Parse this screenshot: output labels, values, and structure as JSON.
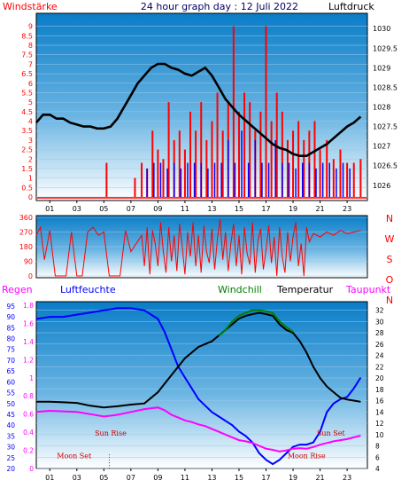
{
  "header": {
    "left_label": "Windstärke",
    "title": "24 hour graph day : 12 Juli 2022",
    "right_label": "Luftdruck"
  },
  "colors": {
    "background_top": "#0a7dc7",
    "background_bottom": "#ffffff",
    "wind": "#ff0000",
    "gust": "#0000ff",
    "pressure": "#000000",
    "direction": "#ff0000",
    "humidity": "#0000ff",
    "temperature": "#000000",
    "windchill": "#008000",
    "dewpoint": "#ff00ff",
    "rain_label": "#ff00ff",
    "humidity_label": "#0000ff",
    "windchill_label": "#008000",
    "temperature_label": "#000000",
    "dewpoint_label": "#ff00ff",
    "event_text": "#cc0000"
  },
  "chart_data": [
    {
      "type": "line",
      "panel": "wind_pressure",
      "xlim": [
        0,
        24.5
      ],
      "x_ticks": [
        "01",
        "03",
        "05",
        "07",
        "09",
        "11",
        "13",
        "15",
        "17",
        "19",
        "21",
        "23"
      ],
      "left_axis": {
        "label": "Windstärke",
        "ylim": [
          0,
          9.5
        ],
        "ticks": [
          "0",
          "0.5",
          "1",
          "1.5",
          "2",
          "2.5",
          "3",
          "3.5",
          "4",
          "4.5",
          "5",
          "5.5",
          "6",
          "6.5",
          "7",
          "7.5",
          "8",
          "8.5",
          "9"
        ]
      },
      "right_axis": {
        "label": "Luftdruck",
        "ylim": [
          1025.7,
          1030.3
        ],
        "ticks": [
          "1026",
          "1026.5",
          "1027",
          "1027.5",
          "1028",
          "1028.5",
          "1029",
          "1029.5",
          "1030"
        ]
      },
      "series": [
        {
          "name": "Windstärke",
          "style": "bars",
          "x": [
            5.2,
            7.3,
            7.8,
            8.2,
            8.6,
            9.0,
            9.4,
            9.8,
            10.2,
            10.6,
            11.0,
            11.4,
            11.8,
            12.2,
            12.6,
            13.0,
            13.4,
            13.8,
            14.2,
            14.6,
            15.0,
            15.4,
            15.8,
            16.2,
            16.6,
            17.0,
            17.4,
            17.8,
            18.2,
            18.6,
            19.0,
            19.4,
            19.8,
            20.2,
            20.6,
            21.0,
            21.5,
            22.0,
            22.5,
            23.0,
            23.5,
            24.0
          ],
          "values": [
            1.8,
            1.0,
            1.8,
            1.5,
            3.5,
            2.5,
            2.0,
            5.0,
            3.0,
            3.5,
            2.5,
            4.5,
            3.5,
            5.0,
            3.0,
            4.0,
            5.5,
            3.5,
            5.0,
            9.0,
            4.5,
            5.5,
            5.0,
            3.5,
            4.5,
            9.0,
            4.0,
            5.5,
            4.5,
            3.0,
            3.5,
            4.0,
            3.0,
            3.5,
            4.0,
            2.5,
            3.0,
            2.0,
            2.5,
            1.8,
            1.8,
            2.0
          ]
        },
        {
          "name": "Böen",
          "style": "bars",
          "x": [
            8.2,
            8.7,
            9.2,
            9.7,
            10.2,
            10.7,
            11.2,
            11.7,
            12.2,
            12.7,
            13.2,
            13.7,
            14.2,
            14.7,
            15.2,
            15.7,
            16.2,
            16.7,
            17.2,
            17.7,
            18.2,
            18.7,
            19.2,
            19.7,
            20.2,
            20.7,
            21.2,
            21.7,
            22.2,
            22.7,
            23.2
          ],
          "values": [
            1.5,
            1.8,
            1.8,
            1.5,
            1.8,
            1.5,
            1.8,
            1.8,
            1.8,
            1.5,
            1.8,
            1.8,
            3.0,
            1.8,
            3.5,
            1.8,
            3.0,
            1.8,
            1.8,
            3.0,
            1.8,
            1.8,
            1.5,
            1.8,
            1.8,
            1.5,
            1.8,
            1.8,
            1.5,
            1.8,
            1.5
          ]
        },
        {
          "name": "Luftdruck",
          "style": "line",
          "axis": "right",
          "x": [
            0,
            0.5,
            1,
            1.5,
            2,
            2.5,
            3,
            3.5,
            4,
            4.5,
            5,
            5.5,
            6,
            6.5,
            7,
            7.5,
            8,
            8.5,
            9,
            9.5,
            10,
            10.5,
            11,
            11.5,
            12,
            12.5,
            13,
            13.5,
            14,
            14.5,
            15,
            15.5,
            16,
            16.5,
            17,
            17.5,
            18,
            18.5,
            19,
            19.5,
            20,
            20.5,
            21,
            21.5,
            22,
            22.5,
            23,
            23.5,
            24
          ],
          "values": [
            1027.6,
            1027.8,
            1027.8,
            1027.7,
            1027.7,
            1027.6,
            1027.55,
            1027.5,
            1027.5,
            1027.45,
            1027.45,
            1027.5,
            1027.7,
            1028.0,
            1028.3,
            1028.6,
            1028.8,
            1029.0,
            1029.1,
            1029.1,
            1029.0,
            1028.95,
            1028.85,
            1028.8,
            1028.9,
            1029.0,
            1028.8,
            1028.5,
            1028.2,
            1028.0,
            1027.8,
            1027.65,
            1027.5,
            1027.35,
            1027.2,
            1027.05,
            1026.95,
            1026.9,
            1026.8,
            1026.75,
            1026.75,
            1026.85,
            1026.95,
            1027.05,
            1027.2,
            1027.35,
            1027.5,
            1027.6,
            1027.75
          ]
        }
      ]
    },
    {
      "type": "line",
      "panel": "wind_direction",
      "xlim": [
        0,
        24.5
      ],
      "ylim": [
        0,
        360
      ],
      "left_ticks": [
        "360",
        "270",
        "180",
        "90",
        "0"
      ],
      "right_ticks": [
        "N",
        "W",
        "S",
        "O",
        "N"
      ],
      "series": [
        {
          "name": "Windrichtung",
          "x": [
            0,
            0.3,
            0.6,
            1.0,
            1.4,
            1.8,
            2.2,
            2.6,
            3.0,
            3.4,
            3.8,
            4.2,
            4.6,
            5.0,
            5.4,
            5.8,
            6.2,
            6.6,
            7.0,
            7.4,
            7.8,
            8.0,
            8.2,
            8.4,
            8.6,
            8.8,
            9.0,
            9.2,
            9.4,
            9.6,
            9.8,
            10.0,
            10.2,
            10.4,
            10.6,
            10.8,
            11.0,
            11.2,
            11.4,
            11.6,
            11.8,
            12.0,
            12.2,
            12.4,
            12.6,
            12.8,
            13.0,
            13.2,
            13.4,
            13.6,
            13.8,
            14.0,
            14.2,
            14.4,
            14.6,
            14.8,
            15.0,
            15.2,
            15.4,
            15.6,
            15.8,
            16.0,
            16.2,
            16.4,
            16.6,
            16.8,
            17.0,
            17.2,
            17.4,
            17.6,
            17.8,
            18.0,
            18.2,
            18.4,
            18.6,
            18.8,
            19.0,
            19.2,
            19.4,
            19.6,
            19.8,
            20.0,
            20.2,
            20.5,
            21.0,
            21.5,
            22.0,
            22.5,
            23.0,
            23.5,
            24.0
          ],
          "values": [
            250,
            300,
            100,
            280,
            0,
            0,
            0,
            270,
            0,
            0,
            270,
            300,
            250,
            270,
            0,
            0,
            0,
            280,
            150,
            200,
            250,
            60,
            300,
            10,
            280,
            200,
            60,
            330,
            150,
            20,
            300,
            90,
            250,
            30,
            320,
            180,
            10,
            270,
            120,
            330,
            60,
            250,
            20,
            310,
            150,
            80,
            290,
            40,
            230,
            350,
            100,
            270,
            30,
            200,
            320,
            60,
            250,
            10,
            300,
            140,
            70,
            330,
            20,
            220,
            290,
            40,
            160,
            310,
            80,
            240,
            0,
            300,
            120,
            20,
            270,
            90,
            240,
            330,
            60,
            200,
            0,
            300,
            210,
            260,
            240,
            270,
            250,
            280,
            260,
            270,
            280
          ]
        }
      ]
    },
    {
      "type": "line",
      "panel": "humidity_temperature",
      "xlim": [
        0,
        24.5
      ],
      "axes": {
        "rain": {
          "label": "Regen",
          "ticks": [
            "0",
            "0.2",
            "0.4",
            "0.6",
            "0.8",
            "1",
            "1.2",
            "1.4",
            "1.6",
            "1.8"
          ]
        },
        "humidity": {
          "label": "Luftfeuchte",
          "ylim": [
            20,
            97
          ],
          "ticks": [
            "20",
            "25",
            "30",
            "35",
            "40",
            "45",
            "50",
            "55",
            "60",
            "65",
            "70",
            "75",
            "80",
            "85",
            "90",
            "95"
          ]
        },
        "temperature": {
          "label": "Temperatur",
          "ylim": [
            4,
            33.5
          ],
          "ticks": [
            "4",
            "6",
            "8",
            "10",
            "12",
            "14",
            "16",
            "18",
            "20",
            "22",
            "24",
            "26",
            "28",
            "30",
            "32"
          ]
        }
      },
      "legend": [
        "Windchill",
        "Temperatur",
        "Taupunkt"
      ],
      "series": [
        {
          "name": "Luftfeuchte",
          "axis": "humidity",
          "x": [
            0,
            1,
            2,
            3,
            4,
            5,
            6,
            7,
            8,
            9,
            9.5,
            10,
            10.5,
            11,
            11.5,
            12,
            12.5,
            13,
            13.5,
            14,
            14.5,
            15,
            15.5,
            16,
            16.5,
            17,
            17.5,
            18,
            18.5,
            19,
            19.5,
            20,
            20.5,
            21,
            21.5,
            22,
            22.5,
            23,
            23.5,
            24
          ],
          "values": [
            89,
            90,
            90,
            91,
            92,
            93,
            94,
            94,
            93,
            89,
            83,
            75,
            67,
            62,
            57,
            52,
            49,
            46,
            44,
            42,
            40,
            37,
            35,
            32,
            27,
            24,
            22,
            24,
            27,
            30,
            31,
            31,
            32,
            37,
            46,
            50,
            52,
            53,
            57,
            62
          ]
        },
        {
          "name": "Temperatur",
          "axis": "temperature",
          "x": [
            0,
            1,
            2,
            3,
            4,
            5,
            6,
            7,
            8,
            9,
            9.5,
            10,
            10.5,
            11,
            11.5,
            12,
            12.5,
            13,
            13.5,
            14,
            14.5,
            15,
            15.5,
            16,
            16.5,
            17,
            17.5,
            18,
            18.5,
            19,
            19.5,
            20,
            20.5,
            21,
            21.5,
            22,
            22.5,
            23,
            23.5,
            24
          ],
          "values": [
            15.8,
            15.8,
            15.7,
            15.6,
            15.1,
            14.8,
            15.0,
            15.3,
            15.5,
            17.5,
            19.0,
            20.5,
            22.0,
            23.5,
            24.5,
            25.5,
            26.0,
            26.5,
            27.5,
            28.5,
            29.5,
            30.5,
            31.0,
            31.3,
            31.5,
            31.3,
            31.0,
            29.5,
            28.5,
            28.0,
            26.5,
            24.5,
            22.0,
            20.0,
            18.5,
            17.5,
            16.5,
            16.2,
            16.0,
            15.8
          ]
        },
        {
          "name": "Windchill",
          "axis": "temperature",
          "x": [
            13.5,
            14,
            14.5,
            15,
            15.5,
            16,
            16.5,
            17,
            17.5,
            18,
            18.5,
            19
          ],
          "values": [
            27.5,
            28.5,
            30.0,
            31.0,
            31.5,
            32.0,
            32.0,
            31.8,
            31.5,
            30.0,
            29.0,
            28.2
          ]
        },
        {
          "name": "Taupunkt",
          "axis": "temperature",
          "x": [
            0,
            1,
            2,
            3,
            4,
            5,
            6,
            7,
            8,
            9,
            9.5,
            10,
            10.5,
            11,
            11.5,
            12,
            12.5,
            13,
            13.5,
            14,
            14.5,
            15,
            15.5,
            16,
            16.5,
            17,
            17.5,
            18,
            18.5,
            19,
            19.5,
            20,
            20.5,
            21,
            21.5,
            22,
            22.5,
            23,
            23.5,
            24
          ],
          "values": [
            14.0,
            14.2,
            14.1,
            14.0,
            13.6,
            13.2,
            13.5,
            14.0,
            14.5,
            14.8,
            14.3,
            13.5,
            13.0,
            12.5,
            12.2,
            11.8,
            11.5,
            11.0,
            10.5,
            10.0,
            9.5,
            9.0,
            8.8,
            8.5,
            8.0,
            7.5,
            7.3,
            7.0,
            7.2,
            7.5,
            7.6,
            7.5,
            7.8,
            8.2,
            8.5,
            8.8,
            9.0,
            9.2,
            9.5,
            9.8
          ]
        }
      ],
      "annotations": [
        {
          "text": "Sun Rise",
          "x": 5.5,
          "y_temp": 9.8
        },
        {
          "text": "Moon Set",
          "x": 2.8,
          "y_temp": 5.8
        },
        {
          "text": "Sun Set",
          "x": 21.8,
          "y_temp": 9.8
        },
        {
          "text": "Moon Rise",
          "x": 20.0,
          "y_temp": 5.8
        }
      ]
    }
  ]
}
